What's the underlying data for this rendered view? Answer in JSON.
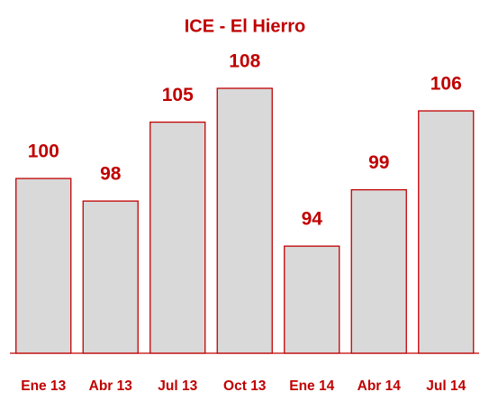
{
  "chart_data": {
    "type": "bar",
    "title": "ICE - El Hierro",
    "categories": [
      "Ene 13",
      "Abr 13",
      "Jul 13",
      "Oct 13",
      "Ene 14",
      "Abr 14",
      "Jul 14"
    ],
    "values": [
      100,
      98,
      105,
      108,
      94,
      99,
      106
    ],
    "color": "#d9d9d9",
    "edge_color": "#c00000",
    "label_color": "#c00000",
    "ylim": [
      84.5,
      110
    ]
  }
}
